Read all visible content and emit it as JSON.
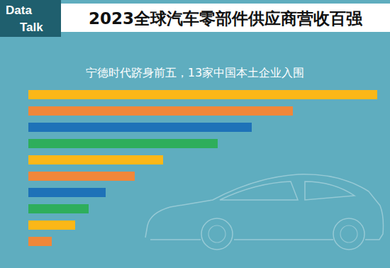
{
  "chart_data": {
    "type": "bar",
    "orientation": "horizontal",
    "badge": [
      "Data",
      "Talk"
    ],
    "title": "2023全球汽车零部件供应商营收百强",
    "subtitle": "宁德时代跻身前五，13家中国本土企业入围",
    "categories": [
      null,
      null,
      null,
      null,
      null,
      null,
      null,
      null,
      null,
      null
    ],
    "values": [
      492,
      373,
      315,
      267,
      190,
      150,
      109,
      85,
      66,
      33
    ],
    "colors": [
      "#fbb718",
      "#f0873a",
      "#1e72b8",
      "#2eae5c",
      "#fbb718",
      "#f0873a",
      "#1e72b8",
      "#2eae5c",
      "#fbb718",
      "#f0873a"
    ],
    "xlim": [
      0,
      492
    ],
    "xticks": [],
    "grid": false,
    "tick_labels": false
  }
}
